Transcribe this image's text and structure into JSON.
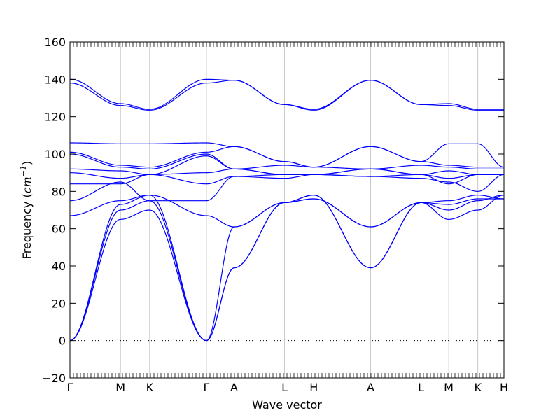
{
  "chart_data": {
    "type": "line",
    "xlabel": "Wave vector",
    "ylabel": {
      "prefix": "Frequency (",
      "unit_base": "cm",
      "unit_exp": "−1",
      "suffix": ")"
    },
    "ylim": [
      -20,
      160
    ],
    "yticks": [
      -20,
      0,
      20,
      40,
      60,
      80,
      100,
      120,
      140,
      160
    ],
    "grid": false,
    "zero_line": true,
    "line_color": "#0000ff",
    "high_symmetry_points": [
      {
        "label": "Γ",
        "x": 0.0
      },
      {
        "label": "M",
        "x": 0.1164
      },
      {
        "label": "K",
        "x": 0.1836
      },
      {
        "label": "Γ",
        "x": 0.3145
      },
      {
        "label": "A",
        "x": 0.3782
      },
      {
        "label": "L",
        "x": 0.4945
      },
      {
        "label": "H",
        "x": 0.5618
      },
      {
        "label": "A",
        "x": 0.6927
      },
      {
        "label": "L",
        "x": 0.8091
      },
      {
        "label": "M",
        "x": 0.8727
      },
      {
        "label": "K",
        "x": 0.94
      },
      {
        "label": "H",
        "x": 1.0
      }
    ],
    "x": [
      0.0,
      0.1164,
      0.1836,
      0.3145,
      0.3782,
      0.4945,
      0.5618,
      0.6927,
      0.8091,
      0.8727,
      0.94,
      1.0
    ],
    "series": [
      {
        "values": [
          0,
          65,
          70,
          0,
          39,
          74,
          78,
          39,
          74,
          65,
          70,
          78
        ]
      },
      {
        "values": [
          0,
          70,
          75,
          0,
          39,
          74,
          78,
          39,
          74,
          70,
          75,
          78
        ]
      },
      {
        "values": [
          0,
          73,
          78,
          0,
          61,
          74,
          76,
          61,
          74,
          73,
          76,
          76
        ]
      },
      {
        "values": [
          67,
          75,
          78,
          67,
          61,
          74,
          76,
          61,
          74,
          75,
          78,
          76
        ]
      },
      {
        "values": [
          75,
          85,
          75,
          75,
          88,
          87,
          89,
          88,
          87,
          85,
          80,
          89
        ]
      },
      {
        "values": [
          84,
          84,
          89,
          84,
          88,
          89,
          89,
          88,
          89,
          84,
          89,
          89
        ]
      },
      {
        "values": [
          90,
          87,
          89,
          90,
          92,
          89,
          89,
          92,
          89,
          87,
          89,
          89
        ]
      },
      {
        "values": [
          92,
          91,
          89,
          99,
          92,
          89,
          89,
          92,
          89,
          91,
          89,
          89
        ]
      },
      {
        "values": [
          100,
          93,
          92,
          100,
          92,
          94,
          93,
          92,
          94,
          93,
          92,
          92
        ]
      },
      {
        "values": [
          101,
          94,
          93,
          101,
          104,
          96,
          93,
          104,
          96,
          94,
          93,
          93
        ]
      },
      {
        "values": [
          106,
          105.5,
          105.5,
          106,
          104,
          96,
          93,
          104,
          96,
          105.5,
          105.5,
          93
        ]
      },
      {
        "values": [
          138,
          126,
          123.5,
          138,
          139.5,
          126.5,
          123.5,
          139.5,
          126.5,
          126,
          123.5,
          123.5
        ]
      },
      {
        "values": [
          140,
          127,
          124,
          140,
          139.5,
          126.5,
          124,
          139.5,
          126.5,
          127,
          124,
          124
        ]
      }
    ]
  }
}
